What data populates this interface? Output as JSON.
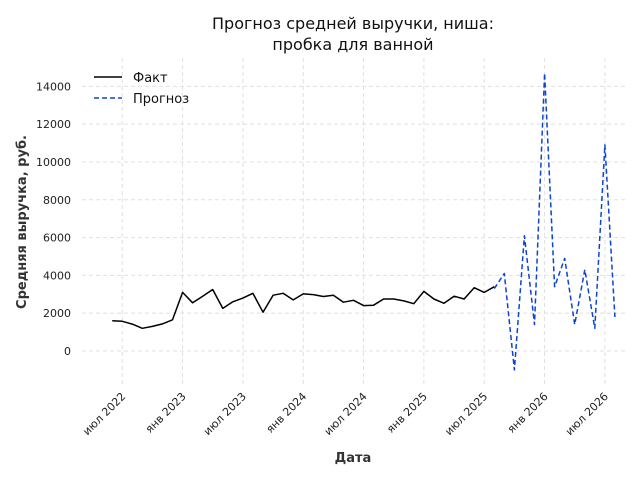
{
  "chart_data": {
    "type": "line",
    "title_lines": [
      "Прогноз средней выручки, ниша:",
      "пробка для ванной"
    ],
    "xlabel": "Дата",
    "ylabel": "Средняя выручка, руб.",
    "ylim": [
      -1800,
      15500
    ],
    "yticks": [
      0,
      2000,
      4000,
      6000,
      8000,
      10000,
      12000,
      14000
    ],
    "xticks": [
      {
        "date": "2022-07-01",
        "label": "июл 2022"
      },
      {
        "date": "2023-01-01",
        "label": "янв 2023"
      },
      {
        "date": "2023-07-01",
        "label": "июл 2023"
      },
      {
        "date": "2024-01-01",
        "label": "янв 2024"
      },
      {
        "date": "2024-07-01",
        "label": "июл 2024"
      },
      {
        "date": "2025-01-01",
        "label": "янв 2025"
      },
      {
        "date": "2025-07-01",
        "label": "июл 2025"
      },
      {
        "date": "2026-01-01",
        "label": "янв 2026"
      },
      {
        "date": "2026-07-01",
        "label": "июл 2026"
      }
    ],
    "legend_position": "top-left",
    "grid": true,
    "series": [
      {
        "name": "Факт",
        "color": "#000000",
        "style": "solid",
        "x": [
          "2022-06",
          "2022-07",
          "2022-08",
          "2022-09",
          "2022-10",
          "2022-11",
          "2022-12",
          "2023-01",
          "2023-02",
          "2023-03",
          "2023-04",
          "2023-05",
          "2023-06",
          "2023-07",
          "2023-08",
          "2023-09",
          "2023-10",
          "2023-11",
          "2023-12",
          "2024-01",
          "2024-02",
          "2024-03",
          "2024-04",
          "2024-05",
          "2024-06",
          "2024-07",
          "2024-08",
          "2024-09",
          "2024-10",
          "2024-11",
          "2024-12",
          "2025-01",
          "2025-02",
          "2025-03",
          "2025-04",
          "2025-05",
          "2025-06",
          "2025-07",
          "2025-08"
        ],
        "y": [
          1600,
          1570,
          1420,
          1200,
          1300,
          1430,
          1650,
          3100,
          2550,
          2900,
          3250,
          2250,
          2600,
          2800,
          3050,
          2050,
          2950,
          3050,
          2700,
          3020,
          2980,
          2880,
          2950,
          2580,
          2680,
          2400,
          2420,
          2750,
          2750,
          2650,
          2500,
          3150,
          2750,
          2520,
          2900,
          2750,
          3350,
          3100,
          3400
        ]
      },
      {
        "name": "Прогноз",
        "color": "#0b43d6",
        "style": "dashed",
        "x": [
          "2025-08",
          "2025-09",
          "2025-10",
          "2025-11",
          "2025-12",
          "2026-01",
          "2026-02",
          "2026-03",
          "2026-04",
          "2026-05",
          "2026-06",
          "2026-07",
          "2026-08"
        ],
        "y": [
          3300,
          4100,
          -1000,
          6100,
          1400,
          14700,
          3400,
          4900,
          1400,
          4300,
          1200,
          10900,
          1800
        ]
      }
    ]
  }
}
